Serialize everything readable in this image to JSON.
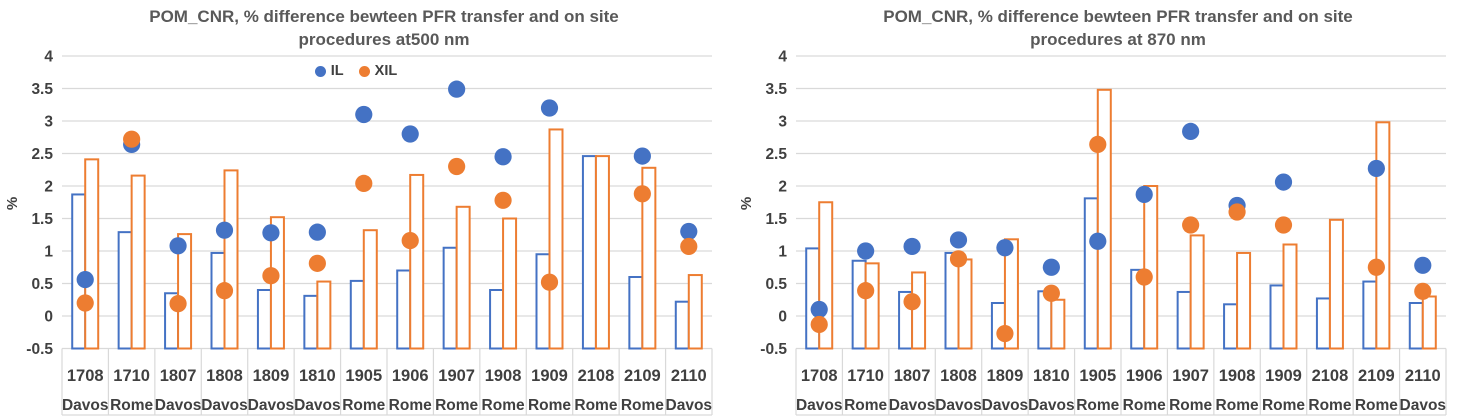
{
  "figure": {
    "background": "#ffffff",
    "colors": {
      "il_blue": "#4472C4",
      "xil_orange": "#ED7D31",
      "gridline": "#D9D9D9",
      "title_text": "#595959",
      "axis_text": "#404040"
    }
  },
  "chart_data": [
    {
      "type": "bar+scatter",
      "title": "POM_CNR, % difference bewteen PFR transfer and on site procedures at500 nm",
      "title_line1": "POM_CNR, % difference bewteen PFR transfer and on site",
      "title_line2": "procedures at500 nm",
      "ylabel": "%",
      "ylim": [
        -0.5,
        4
      ],
      "ytick_step": 0.5,
      "ytick_labels": [
        "4",
        "3.5",
        "3",
        "2.5",
        "2",
        "1.5",
        "1",
        "0.5",
        "0",
        "-0.5"
      ],
      "grid": true,
      "legend": {
        "visible": true,
        "position": "top",
        "entries": [
          "IL",
          "XIL"
        ]
      },
      "categories": [
        "1708",
        "1710",
        "1807",
        "1808",
        "1809",
        "1810",
        "1905",
        "1906",
        "1907",
        "1908",
        "1909",
        "2108",
        "2109",
        "2110"
      ],
      "site_labels": [
        "Davos",
        "Rome",
        "Davos",
        "Davos",
        "Davos",
        "Davos",
        "Rome",
        "Rome",
        "Rome",
        "Rome",
        "Rome",
        "Rome",
        "Rome",
        "Davos"
      ],
      "series": [
        {
          "name": "IL",
          "type": "bar",
          "color": "#4472C4",
          "values": [
            1.87,
            1.29,
            0.35,
            0.97,
            0.4,
            0.31,
            0.54,
            0.7,
            1.05,
            0.4,
            0.95,
            2.46,
            0.6,
            0.22
          ]
        },
        {
          "name": "XIL",
          "type": "bar",
          "color": "#ED7D31",
          "values": [
            2.41,
            2.16,
            1.26,
            2.24,
            1.52,
            0.53,
            1.32,
            2.17,
            1.68,
            1.5,
            2.87,
            2.46,
            2.28,
            0.63
          ]
        },
        {
          "name": "IL",
          "type": "scatter",
          "color": "#4472C4",
          "values": [
            0.56,
            2.64,
            1.08,
            1.32,
            1.28,
            1.29,
            3.1,
            2.8,
            3.49,
            2.45,
            3.2,
            null,
            2.46,
            1.3
          ]
        },
        {
          "name": "XIL",
          "type": "scatter",
          "color": "#ED7D31",
          "values": [
            0.2,
            2.72,
            0.19,
            0.39,
            0.62,
            0.81,
            2.04,
            1.16,
            2.3,
            1.78,
            0.52,
            null,
            1.88,
            1.07
          ]
        }
      ]
    },
    {
      "type": "bar+scatter",
      "title": "POM_CNR, % difference bewteen PFR transfer and on site procedures at 870 nm",
      "title_line1": "POM_CNR, % difference bewteen PFR transfer and on site",
      "title_line2": "procedures at 870 nm",
      "ylabel": "%",
      "ylim": [
        -0.5,
        4
      ],
      "ytick_step": 0.5,
      "ytick_labels": [
        "4",
        "3.5",
        "3",
        "2.5",
        "2",
        "1.5",
        "1",
        "0.5",
        "0",
        "-0.5"
      ],
      "grid": true,
      "legend": {
        "visible": false,
        "position": "top",
        "entries": [
          "IL",
          "XIL"
        ]
      },
      "categories": [
        "1708",
        "1710",
        "1807",
        "1808",
        "1809",
        "1810",
        "1905",
        "1906",
        "1907",
        "1908",
        "1909",
        "2108",
        "2109",
        "2110"
      ],
      "site_labels": [
        "Davos",
        "Rome",
        "Davos",
        "Davos",
        "Davos",
        "Davos",
        "Rome",
        "Rome",
        "Rome",
        "Rome",
        "Rome",
        "Rome",
        "Rome",
        "Davos"
      ],
      "series": [
        {
          "name": "IL",
          "type": "bar",
          "color": "#4472C4",
          "values": [
            1.04,
            0.85,
            0.37,
            0.97,
            0.2,
            0.38,
            1.81,
            0.71,
            0.37,
            0.18,
            0.47,
            0.27,
            0.53,
            0.2
          ]
        },
        {
          "name": "XIL",
          "type": "bar",
          "color": "#ED7D31",
          "values": [
            1.75,
            0.81,
            0.67,
            0.87,
            1.18,
            0.25,
            3.48,
            2.0,
            1.24,
            0.97,
            1.1,
            1.48,
            2.98,
            0.3
          ]
        },
        {
          "name": "IL",
          "type": "scatter",
          "color": "#4472C4",
          "values": [
            0.1,
            1.0,
            1.07,
            1.17,
            1.05,
            0.75,
            1.15,
            1.87,
            2.84,
            1.7,
            2.06,
            null,
            2.27,
            0.78
          ]
        },
        {
          "name": "XIL",
          "type": "scatter",
          "color": "#ED7D31",
          "values": [
            -0.13,
            0.39,
            0.22,
            0.88,
            -0.27,
            0.35,
            2.64,
            0.6,
            1.4,
            1.6,
            1.4,
            null,
            0.75,
            0.38
          ]
        }
      ]
    }
  ]
}
